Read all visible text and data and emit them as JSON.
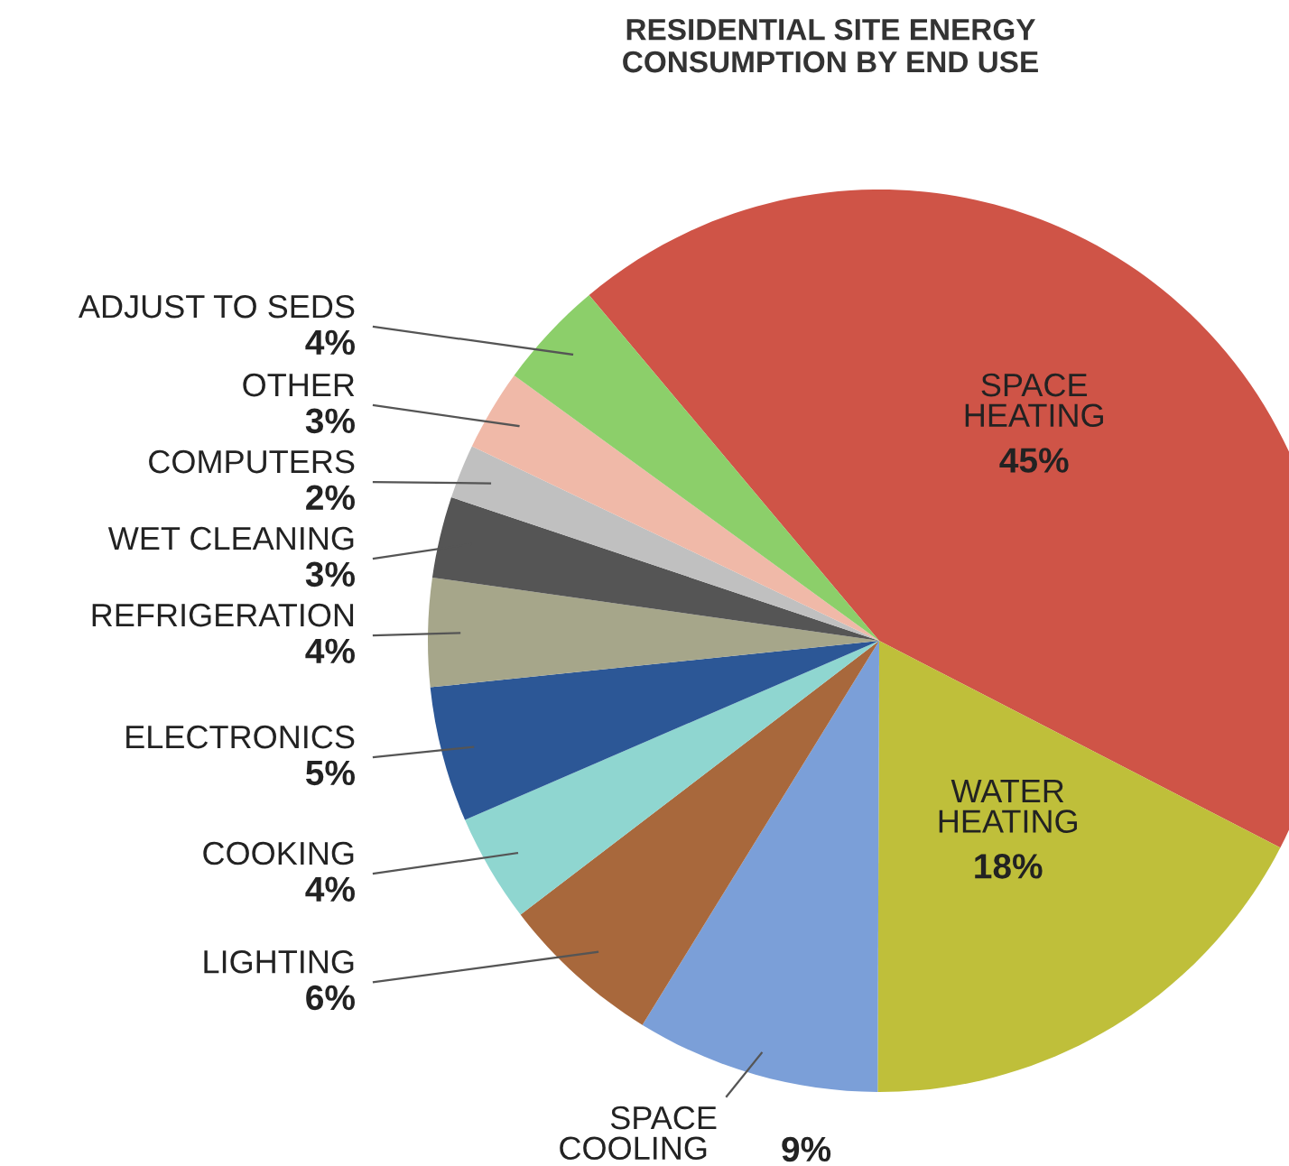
{
  "chart_data": {
    "type": "pie",
    "title": "RESIDENTIAL SITE ENERGY\nCONSUMPTION BY END USE",
    "categories": [
      "SPACE\nHEATING",
      "WATER\nHEATING",
      "SPACE\nCOOLING",
      "LIGHTING",
      "COOKING",
      "ELECTRONICS",
      "REFRIGERATION",
      "WET CLEANING",
      "COMPUTERS",
      "OTHER",
      "ADJUST TO SEDS"
    ],
    "values": [
      45,
      18,
      9,
      6,
      4,
      5,
      4,
      3,
      2,
      3,
      4
    ],
    "value_labels": [
      "45%",
      "18%",
      "9%",
      "6%",
      "4%",
      "5%",
      "4%",
      "3%",
      "2%",
      "3%",
      "4%"
    ],
    "colors": [
      "#cf5447",
      "#bfbf3a",
      "#7b9fd8",
      "#a8683c",
      "#8fd6d0",
      "#2c5796",
      "#a6a68a",
      "#555555",
      "#c0c0c0",
      "#f0b9a8",
      "#8ccf6a"
    ]
  }
}
